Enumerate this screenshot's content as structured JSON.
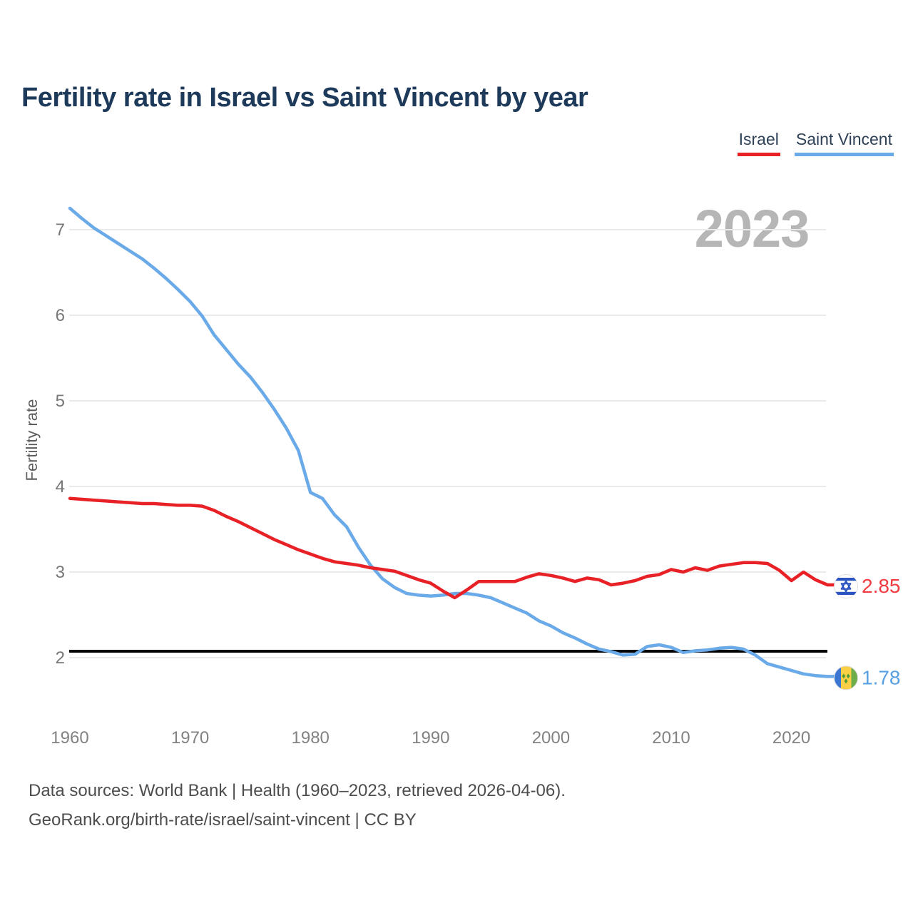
{
  "title": "Fertility rate in Israel vs Saint Vincent by year",
  "watermark": "2023",
  "legend": [
    {
      "label": "Israel",
      "color": "#e82127"
    },
    {
      "label": "Saint Vincent",
      "color": "#6aaae8"
    }
  ],
  "chart_data": {
    "type": "line",
    "title": "Fertility rate in Israel vs Saint Vincent by year",
    "xlabel": "",
    "ylabel": "Fertility rate",
    "x_start": 1960,
    "x_end": 2023,
    "xticks": [
      1960,
      1970,
      1980,
      1990,
      2000,
      2010,
      2020
    ],
    "yticks": [
      2,
      3,
      4,
      5,
      6,
      7
    ],
    "ylim": [
      1.6,
      7.5
    ],
    "grid": true,
    "legend_position": "top-right",
    "reference_line": {
      "value": 2.1,
      "color": "#000000"
    },
    "series": [
      {
        "name": "Israel",
        "color": "#e82127",
        "end_label": "2.85",
        "end_label_color": "#f03b40",
        "flag": "israel-flag",
        "values": [
          3.86,
          3.85,
          3.84,
          3.83,
          3.82,
          3.81,
          3.8,
          3.8,
          3.79,
          3.78,
          3.78,
          3.77,
          3.72,
          3.65,
          3.59,
          3.52,
          3.45,
          3.38,
          3.32,
          3.26,
          3.21,
          3.16,
          3.12,
          3.1,
          3.08,
          3.05,
          3.03,
          3.01,
          2.96,
          2.91,
          2.87,
          2.78,
          2.7,
          2.79,
          2.89,
          2.89,
          2.89,
          2.89,
          2.94,
          2.98,
          2.96,
          2.93,
          2.89,
          2.93,
          2.91,
          2.85,
          2.87,
          2.9,
          2.95,
          2.97,
          3.03,
          3.0,
          3.05,
          3.02,
          3.07,
          3.09,
          3.11,
          3.11,
          3.1,
          3.02,
          2.9,
          3.0,
          2.91,
          2.85
        ]
      },
      {
        "name": "Saint Vincent",
        "color": "#6aaae8",
        "end_label": "1.78",
        "end_label_color": "#56a0e3",
        "flag": "saint-vincent-flag",
        "values": [
          7.25,
          7.13,
          7.02,
          6.93,
          6.84,
          6.75,
          6.66,
          6.55,
          6.43,
          6.3,
          6.16,
          5.99,
          5.77,
          5.6,
          5.43,
          5.28,
          5.1,
          4.9,
          4.68,
          4.42,
          3.93,
          3.86,
          3.67,
          3.53,
          3.29,
          3.08,
          2.92,
          2.82,
          2.75,
          2.73,
          2.72,
          2.73,
          2.75,
          2.75,
          2.73,
          2.7,
          2.64,
          2.58,
          2.52,
          2.43,
          2.37,
          2.29,
          2.23,
          2.16,
          2.1,
          2.07,
          2.03,
          2.04,
          2.13,
          2.15,
          2.12,
          2.06,
          2.08,
          2.09,
          2.11,
          2.12,
          2.1,
          2.03,
          1.93,
          1.89,
          1.85,
          1.81,
          1.79,
          1.78
        ]
      }
    ]
  },
  "footer": {
    "line1": "Data sources: World Bank | Health (1960–2023, retrieved 2026-04-06).",
    "line2": "GeoRank.org/birth-rate/israel/saint-vincent | CC BY"
  }
}
